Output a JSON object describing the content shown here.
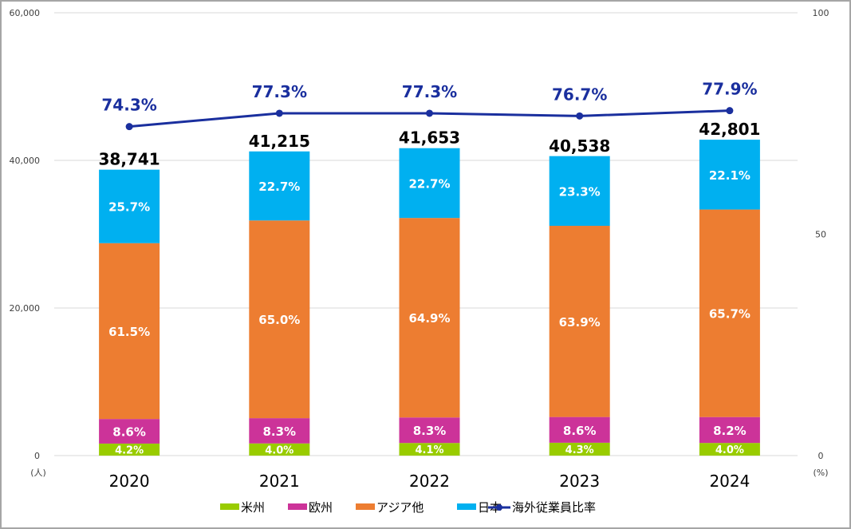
{
  "chart_data": {
    "type": "bar",
    "stacked": true,
    "categories": [
      "2020",
      "2021",
      "2022",
      "2023",
      "2024"
    ],
    "totals": [
      38741,
      41215,
      41653,
      40538,
      42801
    ],
    "totals_labels": [
      "38,741",
      "41,215",
      "41,653",
      "40,538",
      "42,801"
    ],
    "series": [
      {
        "name": "米州",
        "color": "#99cc00",
        "percent": [
          4.2,
          4.0,
          4.1,
          4.3,
          4.0
        ],
        "labels": [
          "4.2%",
          "4.0%",
          "4.1%",
          "4.3%",
          "4.0%"
        ]
      },
      {
        "name": "欧州",
        "color": "#cc3399",
        "percent": [
          8.6,
          8.3,
          8.3,
          8.6,
          8.2
        ],
        "labels": [
          "8.6%",
          "8.3%",
          "8.3%",
          "8.6%",
          "8.2%"
        ]
      },
      {
        "name": "アジア他",
        "color": "#ed7d31",
        "percent": [
          61.5,
          65.0,
          64.9,
          63.9,
          65.7
        ],
        "labels": [
          "61.5%",
          "65.0%",
          "64.9%",
          "63.9%",
          "65.7%"
        ]
      },
      {
        "name": "日本",
        "color": "#00b0f0",
        "percent": [
          25.7,
          22.7,
          22.7,
          23.3,
          22.1
        ],
        "labels": [
          "25.7%",
          "22.7%",
          "22.7%",
          "23.3%",
          "22.1%"
        ]
      }
    ],
    "line_series": {
      "name": "海外従業員比率",
      "color": "#1a2f9e",
      "axis": "right",
      "values": [
        74.3,
        77.3,
        77.3,
        76.7,
        77.9
      ],
      "labels": [
        "74.3%",
        "77.3%",
        "77.3%",
        "76.7%",
        "77.9%"
      ]
    },
    "y_left": {
      "min": 0,
      "max": 60000,
      "ticks": [
        0,
        20000,
        40000,
        60000
      ],
      "tick_labels": [
        "0",
        "20,000",
        "40,000",
        "60,000"
      ],
      "unit_label": "(人)"
    },
    "y_right": {
      "min": 0,
      "max": 100,
      "ticks": [
        0,
        50,
        100
      ],
      "tick_labels": [
        "0",
        "50",
        "100"
      ],
      "unit_label": "(%)"
    },
    "grid": true,
    "legend_position": "bottom"
  }
}
